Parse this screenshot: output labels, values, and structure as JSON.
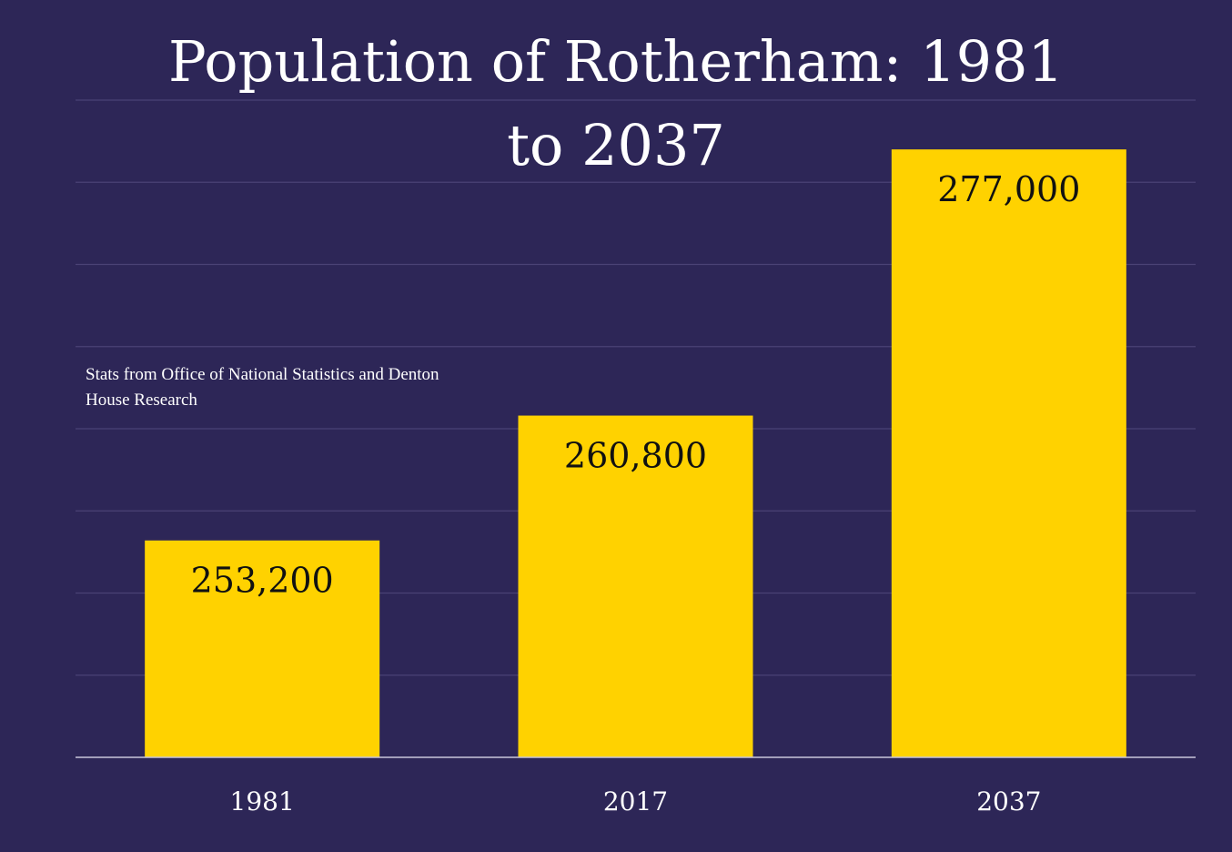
{
  "chart_data": {
    "type": "bar",
    "title": "Population of Rotherham: 1981 to 2037",
    "annotation": "Stats from Office of National Statistics and Denton House Research",
    "categories": [
      "1981",
      "2017",
      "2037"
    ],
    "values": [
      253200,
      260800,
      277000
    ],
    "data_labels": [
      "253,200",
      "260,800",
      "277,000"
    ],
    "xlabel": "",
    "ylabel": "",
    "ylim": [
      240000,
      280000
    ],
    "grid": true,
    "y_tick_labels_shown": false,
    "colors": {
      "background": "#2d2657",
      "bar": "#ffd200",
      "grid": "#4a4275",
      "text": "#ffffff",
      "label": "#111111"
    }
  }
}
